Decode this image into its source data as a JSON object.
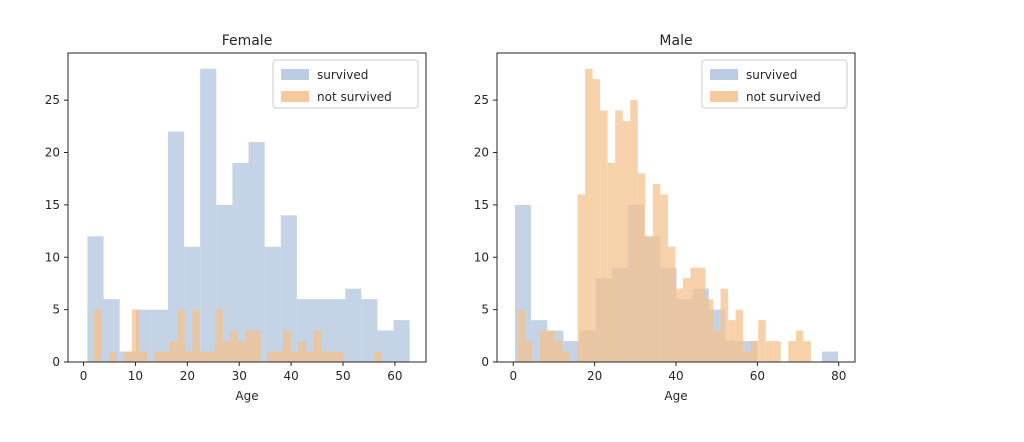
{
  "chart_data": [
    {
      "type": "histogram",
      "title": "Female",
      "xlabel": "Age",
      "ylabel": "",
      "xlim": [
        -3,
        66
      ],
      "ylim": [
        0,
        29.5
      ],
      "xticks": [
        0,
        10,
        20,
        30,
        40,
        50,
        60
      ],
      "yticks": [
        0,
        5,
        10,
        15,
        20,
        25
      ],
      "legend": "top-right",
      "series": [
        {
          "name": "survived",
          "color": "#b0c4de",
          "bins": [
            {
              "x0": 0.75,
              "x1": 3.85,
              "value": 12
            },
            {
              "x0": 3.85,
              "x1": 6.96,
              "value": 6
            },
            {
              "x0": 6.96,
              "x1": 10.06,
              "value": 1
            },
            {
              "x0": 10.06,
              "x1": 13.17,
              "value": 5
            },
            {
              "x0": 13.17,
              "x1": 16.27,
              "value": 5
            },
            {
              "x0": 16.27,
              "x1": 19.38,
              "value": 22
            },
            {
              "x0": 19.38,
              "x1": 22.48,
              "value": 11
            },
            {
              "x0": 22.48,
              "x1": 25.59,
              "value": 28
            },
            {
              "x0": 25.59,
              "x1": 28.69,
              "value": 15
            },
            {
              "x0": 28.69,
              "x1": 31.8,
              "value": 19
            },
            {
              "x0": 31.8,
              "x1": 34.9,
              "value": 21
            },
            {
              "x0": 34.9,
              "x1": 38.01,
              "value": 11
            },
            {
              "x0": 38.01,
              "x1": 41.11,
              "value": 14
            },
            {
              "x0": 41.11,
              "x1": 44.22,
              "value": 6
            },
            {
              "x0": 44.22,
              "x1": 47.32,
              "value": 6
            },
            {
              "x0": 47.32,
              "x1": 50.43,
              "value": 6
            },
            {
              "x0": 50.43,
              "x1": 53.53,
              "value": 7
            },
            {
              "x0": 53.53,
              "x1": 56.64,
              "value": 6
            },
            {
              "x0": 56.64,
              "x1": 59.74,
              "value": 3
            },
            {
              "x0": 59.74,
              "x1": 62.85,
              "value": 4
            }
          ]
        },
        {
          "name": "not survived",
          "color": "#f4c18d",
          "bins": [
            {
              "x0": 2.0,
              "x1": 3.46,
              "value": 5
            },
            {
              "x0": 3.46,
              "x1": 4.92,
              "value": 0
            },
            {
              "x0": 4.92,
              "x1": 6.38,
              "value": 1
            },
            {
              "x0": 6.38,
              "x1": 7.84,
              "value": 0
            },
            {
              "x0": 7.84,
              "x1": 9.3,
              "value": 1
            },
            {
              "x0": 9.3,
              "x1": 10.76,
              "value": 5
            },
            {
              "x0": 10.76,
              "x1": 12.22,
              "value": 1
            },
            {
              "x0": 12.22,
              "x1": 13.68,
              "value": 0
            },
            {
              "x0": 13.68,
              "x1": 15.14,
              "value": 1
            },
            {
              "x0": 15.14,
              "x1": 16.6,
              "value": 1
            },
            {
              "x0": 16.6,
              "x1": 18.06,
              "value": 2
            },
            {
              "x0": 18.06,
              "x1": 19.52,
              "value": 5
            },
            {
              "x0": 19.52,
              "x1": 20.98,
              "value": 1
            },
            {
              "x0": 20.98,
              "x1": 22.44,
              "value": 5
            },
            {
              "x0": 22.44,
              "x1": 23.9,
              "value": 1
            },
            {
              "x0": 23.9,
              "x1": 25.36,
              "value": 1
            },
            {
              "x0": 25.36,
              "x1": 26.82,
              "value": 5
            },
            {
              "x0": 26.82,
              "x1": 28.28,
              "value": 2
            },
            {
              "x0": 28.28,
              "x1": 29.74,
              "value": 3
            },
            {
              "x0": 29.74,
              "x1": 31.2,
              "value": 2
            },
            {
              "x0": 31.2,
              "x1": 32.66,
              "value": 3
            },
            {
              "x0": 32.66,
              "x1": 34.12,
              "value": 3
            },
            {
              "x0": 34.12,
              "x1": 35.58,
              "value": 0
            },
            {
              "x0": 35.58,
              "x1": 37.04,
              "value": 1
            },
            {
              "x0": 37.04,
              "x1": 38.5,
              "value": 1
            },
            {
              "x0": 38.5,
              "x1": 39.96,
              "value": 3
            },
            {
              "x0": 39.96,
              "x1": 41.42,
              "value": 1
            },
            {
              "x0": 41.42,
              "x1": 42.88,
              "value": 2
            },
            {
              "x0": 42.88,
              "x1": 44.34,
              "value": 1
            },
            {
              "x0": 44.34,
              "x1": 45.8,
              "value": 3
            },
            {
              "x0": 45.8,
              "x1": 47.26,
              "value": 1
            },
            {
              "x0": 47.26,
              "x1": 48.72,
              "value": 1
            },
            {
              "x0": 48.72,
              "x1": 50.18,
              "value": 1
            },
            {
              "x0": 50.18,
              "x1": 51.64,
              "value": 0
            },
            {
              "x0": 51.64,
              "x1": 53.1,
              "value": 0
            },
            {
              "x0": 53.1,
              "x1": 54.56,
              "value": 0
            },
            {
              "x0": 54.56,
              "x1": 56.02,
              "value": 0
            },
            {
              "x0": 56.02,
              "x1": 57.48,
              "value": 1
            }
          ]
        }
      ]
    },
    {
      "type": "histogram",
      "title": "Male",
      "xlabel": "Age",
      "ylabel": "",
      "xlim": [
        -4,
        84
      ],
      "ylim": [
        0,
        29.5
      ],
      "xticks": [
        0,
        20,
        40,
        60,
        80
      ],
      "yticks": [
        0,
        5,
        10,
        15,
        20,
        25
      ],
      "legend": "top-right",
      "series": [
        {
          "name": "survived",
          "color": "#b0c4de",
          "bins": [
            {
              "x0": 0.42,
              "x1": 4.39,
              "value": 15
            },
            {
              "x0": 4.39,
              "x1": 8.36,
              "value": 4
            },
            {
              "x0": 8.36,
              "x1": 12.33,
              "value": 3
            },
            {
              "x0": 12.33,
              "x1": 16.3,
              "value": 2
            },
            {
              "x0": 16.3,
              "x1": 20.27,
              "value": 3
            },
            {
              "x0": 20.27,
              "x1": 24.25,
              "value": 8
            },
            {
              "x0": 24.25,
              "x1": 28.22,
              "value": 9
            },
            {
              "x0": 28.22,
              "x1": 32.19,
              "value": 15
            },
            {
              "x0": 32.19,
              "x1": 36.16,
              "value": 12
            },
            {
              "x0": 36.16,
              "x1": 40.13,
              "value": 9
            },
            {
              "x0": 40.13,
              "x1": 44.1,
              "value": 6
            },
            {
              "x0": 44.1,
              "x1": 48.07,
              "value": 7
            },
            {
              "x0": 48.07,
              "x1": 52.04,
              "value": 5
            },
            {
              "x0": 52.04,
              "x1": 56.01,
              "value": 2
            },
            {
              "x0": 56.01,
              "x1": 59.98,
              "value": 2
            },
            {
              "x0": 59.98,
              "x1": 63.96,
              "value": 0
            },
            {
              "x0": 63.96,
              "x1": 67.93,
              "value": 0
            },
            {
              "x0": 67.93,
              "x1": 71.9,
              "value": 0
            },
            {
              "x0": 71.9,
              "x1": 75.87,
              "value": 0
            },
            {
              "x0": 75.87,
              "x1": 79.84,
              "value": 1
            }
          ]
        },
        {
          "name": "not survived",
          "color": "#f4c18d",
          "bins": [
            {
              "x0": 1.0,
              "x1": 2.85,
              "value": 5
            },
            {
              "x0": 2.85,
              "x1": 4.7,
              "value": 2
            },
            {
              "x0": 4.7,
              "x1": 6.55,
              "value": 0
            },
            {
              "x0": 6.55,
              "x1": 8.4,
              "value": 3
            },
            {
              "x0": 8.4,
              "x1": 10.25,
              "value": 3
            },
            {
              "x0": 10.25,
              "x1": 12.1,
              "value": 2
            },
            {
              "x0": 12.1,
              "x1": 13.95,
              "value": 1
            },
            {
              "x0": 13.95,
              "x1": 15.8,
              "value": 0
            },
            {
              "x0": 15.8,
              "x1": 17.65,
              "value": 16
            },
            {
              "x0": 17.65,
              "x1": 19.5,
              "value": 28
            },
            {
              "x0": 19.5,
              "x1": 21.35,
              "value": 27
            },
            {
              "x0": 21.35,
              "x1": 23.2,
              "value": 24
            },
            {
              "x0": 23.2,
              "x1": 25.05,
              "value": 19
            },
            {
              "x0": 25.05,
              "x1": 26.9,
              "value": 24
            },
            {
              "x0": 26.9,
              "x1": 28.75,
              "value": 23
            },
            {
              "x0": 28.75,
              "x1": 30.6,
              "value": 25
            },
            {
              "x0": 30.6,
              "x1": 32.45,
              "value": 18
            },
            {
              "x0": 32.45,
              "x1": 34.3,
              "value": 12
            },
            {
              "x0": 34.3,
              "x1": 36.15,
              "value": 17
            },
            {
              "x0": 36.15,
              "x1": 38.0,
              "value": 16
            },
            {
              "x0": 38.0,
              "x1": 39.85,
              "value": 11
            },
            {
              "x0": 39.85,
              "x1": 41.7,
              "value": 7
            },
            {
              "x0": 41.7,
              "x1": 43.55,
              "value": 8
            },
            {
              "x0": 43.55,
              "x1": 45.4,
              "value": 9
            },
            {
              "x0": 45.4,
              "x1": 47.25,
              "value": 9
            },
            {
              "x0": 47.25,
              "x1": 49.1,
              "value": 6
            },
            {
              "x0": 49.1,
              "x1": 50.95,
              "value": 3
            },
            {
              "x0": 50.95,
              "x1": 52.8,
              "value": 7
            },
            {
              "x0": 52.8,
              "x1": 54.65,
              "value": 4
            },
            {
              "x0": 54.65,
              "x1": 56.5,
              "value": 5
            },
            {
              "x0": 56.5,
              "x1": 58.35,
              "value": 1
            },
            {
              "x0": 58.35,
              "x1": 60.2,
              "value": 2
            },
            {
              "x0": 60.2,
              "x1": 62.05,
              "value": 4
            },
            {
              "x0": 62.05,
              "x1": 63.9,
              "value": 2
            },
            {
              "x0": 63.9,
              "x1": 65.75,
              "value": 2
            },
            {
              "x0": 65.75,
              "x1": 67.6,
              "value": 0
            },
            {
              "x0": 67.6,
              "x1": 69.45,
              "value": 2
            },
            {
              "x0": 69.45,
              "x1": 71.3,
              "value": 3
            },
            {
              "x0": 71.3,
              "x1": 73.15,
              "value": 2
            },
            {
              "x0": 73.15,
              "x1": 75.0,
              "value": 0
            }
          ]
        }
      ]
    }
  ]
}
